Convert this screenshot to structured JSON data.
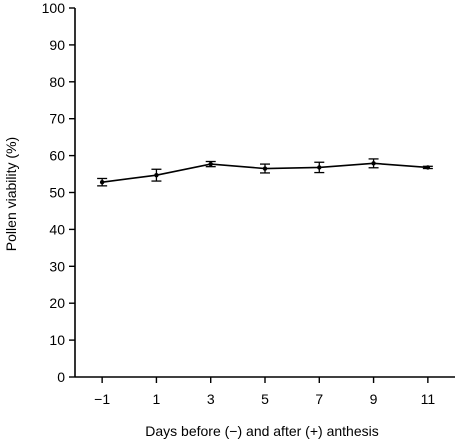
{
  "chart_data": {
    "type": "line",
    "xlabel": "Days before (−) and after (+) anthesis",
    "ylabel": "Pollen viability (%)",
    "x": [
      -1,
      1,
      3,
      5,
      7,
      9,
      11
    ],
    "x_tick_labels": [
      "−1",
      "1",
      "3",
      "5",
      "7",
      "9",
      "11"
    ],
    "ylim": [
      0,
      100
    ],
    "y_ticks": [
      0,
      10,
      20,
      30,
      40,
      50,
      60,
      70,
      80,
      90,
      100
    ],
    "series": [
      {
        "values": [
          52.8,
          54.7,
          57.7,
          56.5,
          56.8,
          57.9,
          56.8
        ],
        "errors": [
          1.0,
          1.6,
          0.7,
          1.2,
          1.4,
          1.2,
          0.3
        ]
      }
    ],
    "grid": false,
    "legend": "none",
    "colors": {
      "line": "#000000"
    }
  }
}
